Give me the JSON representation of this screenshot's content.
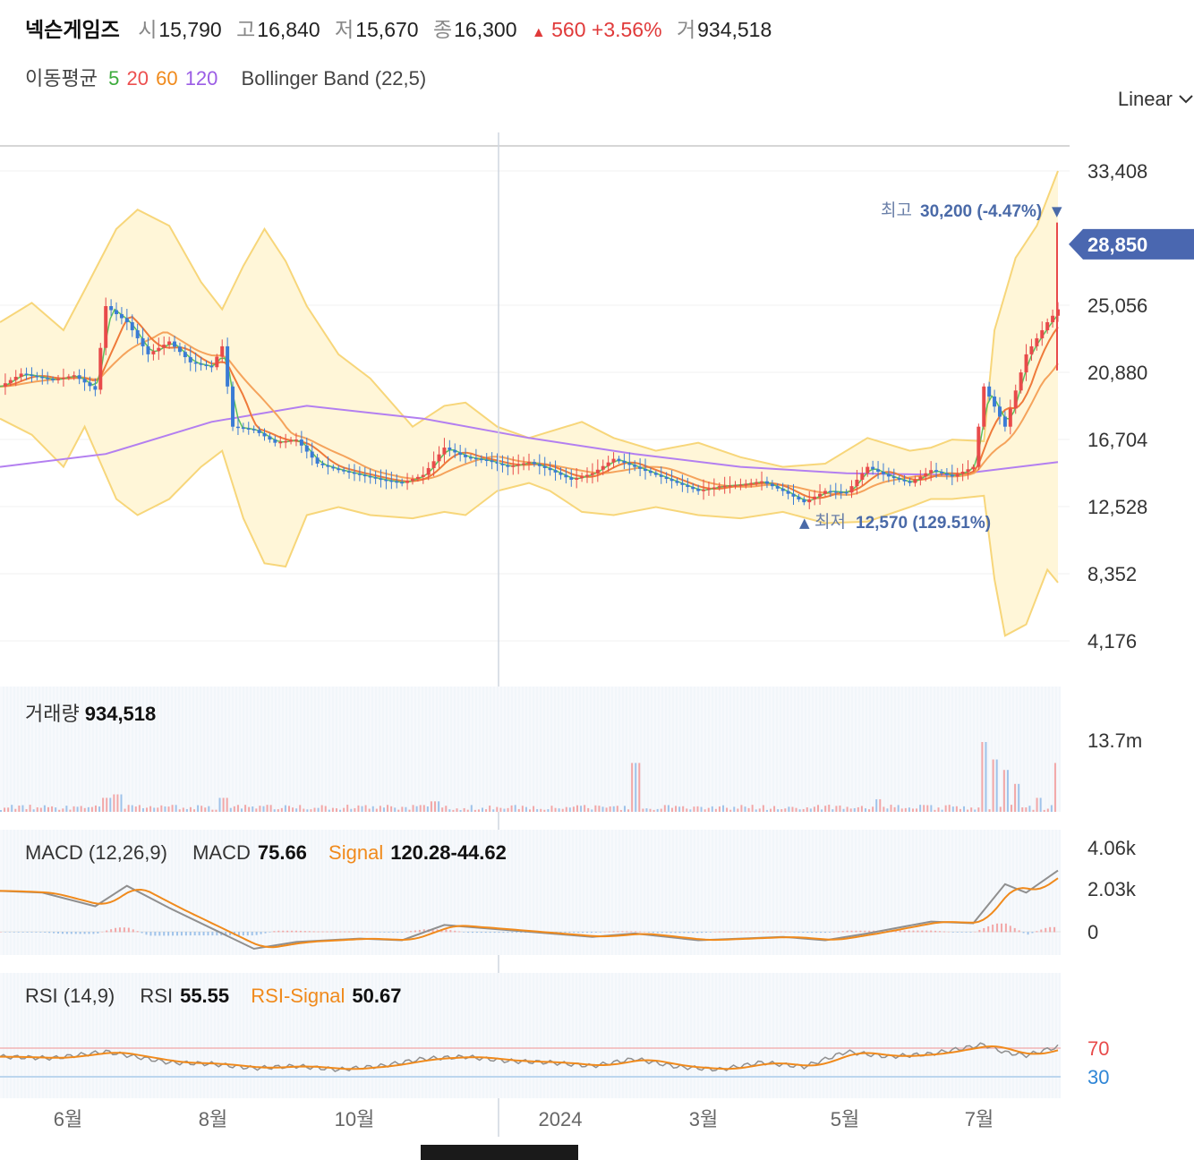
{
  "header": {
    "name": "넥슨게임즈",
    "open_label": "시",
    "open": "15,790",
    "high_label": "고",
    "high": "16,840",
    "low_label": "저",
    "low": "15,670",
    "close_label": "종",
    "close": "16,300",
    "change_arrow": "▲",
    "change": "560",
    "change_pct": "+3.56%",
    "volume_label": "거",
    "volume": "934,518"
  },
  "indicators": {
    "ma_label": "이동평균",
    "ma_periods": [
      "5",
      "20",
      "60",
      "120"
    ],
    "ma_colors": [
      "#3cab3c",
      "#ec4f4f",
      "#f08a1c",
      "#9b5de5"
    ],
    "bollinger": "Bollinger Band (22,5)"
  },
  "scale_mode": "Linear",
  "volume_panel": {
    "label": "거래량",
    "value": "934,518",
    "axis_tick": "13.7m"
  },
  "macd_panel": {
    "label": "MACD (12,26,9)",
    "macd_label": "MACD",
    "macd_value": "75.66",
    "signal_label": "Signal",
    "signal_value": "120.28",
    "hist_value": "-44.62",
    "axis_ticks": [
      "4.06k",
      "2.03k",
      "0"
    ]
  },
  "rsi_panel": {
    "label": "RSI (14,9)",
    "rsi_label": "RSI",
    "rsi_value": "55.55",
    "signal_label": "RSI-Signal",
    "signal_value": "50.67",
    "axis_ticks": [
      "70",
      "30"
    ]
  },
  "chart_data": {
    "type": "candlestick",
    "y_ticks": [
      "33,408",
      "25,056",
      "20,880",
      "16,704",
      "12,528",
      "8,352",
      "4,176"
    ],
    "y_tick_values": [
      33408,
      25056,
      20880,
      16704,
      12528,
      8352,
      4176
    ],
    "ylim": [
      4176,
      33408
    ],
    "current_price_label": "28,850",
    "current_price": 28850,
    "high_annotation": {
      "label": "최고",
      "value": "30,200",
      "pct": "(-4.47%)",
      "arrow": "▼"
    },
    "low_annotation": {
      "label": "최저",
      "value": "12,570",
      "pct": "(129.51%)",
      "arrow": "▲"
    },
    "x_ticks": [
      "6월",
      "8월",
      "10월",
      "2024",
      "3월",
      "5월",
      "7월"
    ],
    "close_path": [
      [
        0,
        20000
      ],
      [
        0.02,
        20800
      ],
      [
        0.05,
        20400
      ],
      [
        0.07,
        20700
      ],
      [
        0.09,
        19800
      ],
      [
        0.1,
        25000
      ],
      [
        0.12,
        24000
      ],
      [
        0.14,
        22000
      ],
      [
        0.16,
        22800
      ],
      [
        0.18,
        21500
      ],
      [
        0.2,
        21200
      ],
      [
        0.21,
        22500
      ],
      [
        0.22,
        17500
      ],
      [
        0.24,
        17300
      ],
      [
        0.26,
        16500
      ],
      [
        0.28,
        16700
      ],
      [
        0.3,
        15200
      ],
      [
        0.32,
        14800
      ],
      [
        0.34,
        14500
      ],
      [
        0.36,
        14200
      ],
      [
        0.38,
        14000
      ],
      [
        0.4,
        14500
      ],
      [
        0.42,
        16200
      ],
      [
        0.44,
        15600
      ],
      [
        0.46,
        15400
      ],
      [
        0.48,
        15000
      ],
      [
        0.5,
        15300
      ],
      [
        0.52,
        14800
      ],
      [
        0.54,
        14200
      ],
      [
        0.56,
        14600
      ],
      [
        0.58,
        15500
      ],
      [
        0.6,
        15000
      ],
      [
        0.62,
        14500
      ],
      [
        0.64,
        14000
      ],
      [
        0.66,
        13500
      ],
      [
        0.68,
        13800
      ],
      [
        0.7,
        13900
      ],
      [
        0.72,
        14100
      ],
      [
        0.74,
        13500
      ],
      [
        0.76,
        12800
      ],
      [
        0.78,
        13500
      ],
      [
        0.8,
        13400
      ],
      [
        0.82,
        15000
      ],
      [
        0.84,
        14400
      ],
      [
        0.86,
        14000
      ],
      [
        0.88,
        14800
      ],
      [
        0.9,
        14400
      ],
      [
        0.92,
        15000
      ],
      [
        0.93,
        20000
      ],
      [
        0.95,
        17500
      ],
      [
        0.97,
        22000
      ],
      [
        0.99,
        24000
      ],
      [
        1.0,
        24800
      ]
    ],
    "ma120_path": [
      [
        0,
        15000
      ],
      [
        0.1,
        15800
      ],
      [
        0.2,
        17800
      ],
      [
        0.29,
        18800
      ],
      [
        0.4,
        18000
      ],
      [
        0.5,
        16800
      ],
      [
        0.6,
        15800
      ],
      [
        0.7,
        15000
      ],
      [
        0.8,
        14600
      ],
      [
        0.9,
        14500
      ],
      [
        1.0,
        15300
      ]
    ],
    "bb_upper_path": [
      [
        0,
        24000
      ],
      [
        0.03,
        25200
      ],
      [
        0.06,
        23500
      ],
      [
        0.08,
        26000
      ],
      [
        0.11,
        29800
      ],
      [
        0.13,
        31000
      ],
      [
        0.16,
        30000
      ],
      [
        0.19,
        26500
      ],
      [
        0.21,
        24800
      ],
      [
        0.23,
        27500
      ],
      [
        0.25,
        29800
      ],
      [
        0.27,
        27800
      ],
      [
        0.29,
        25000
      ],
      [
        0.32,
        22000
      ],
      [
        0.35,
        20500
      ],
      [
        0.39,
        17500
      ],
      [
        0.42,
        18800
      ],
      [
        0.44,
        19000
      ],
      [
        0.47,
        17500
      ],
      [
        0.5,
        16800
      ],
      [
        0.52,
        17200
      ],
      [
        0.55,
        17800
      ],
      [
        0.58,
        16800
      ],
      [
        0.62,
        16000
      ],
      [
        0.66,
        16500
      ],
      [
        0.7,
        15600
      ],
      [
        0.74,
        15000
      ],
      [
        0.78,
        15200
      ],
      [
        0.82,
        16800
      ],
      [
        0.86,
        16000
      ],
      [
        0.88,
        16200
      ],
      [
        0.9,
        16700
      ],
      [
        0.93,
        16600
      ],
      [
        0.94,
        23500
      ],
      [
        0.96,
        28000
      ],
      [
        0.98,
        30000
      ],
      [
        1.0,
        33408
      ]
    ],
    "bb_lower_path": [
      [
        0,
        18000
      ],
      [
        0.03,
        17000
      ],
      [
        0.06,
        15000
      ],
      [
        0.08,
        17500
      ],
      [
        0.11,
        13000
      ],
      [
        0.13,
        12000
      ],
      [
        0.16,
        13000
      ],
      [
        0.19,
        15000
      ],
      [
        0.21,
        16000
      ],
      [
        0.23,
        11800
      ],
      [
        0.25,
        9000
      ],
      [
        0.27,
        8800
      ],
      [
        0.29,
        12000
      ],
      [
        0.32,
        12500
      ],
      [
        0.35,
        12000
      ],
      [
        0.39,
        11800
      ],
      [
        0.42,
        12200
      ],
      [
        0.44,
        12000
      ],
      [
        0.47,
        13500
      ],
      [
        0.5,
        14000
      ],
      [
        0.52,
        13500
      ],
      [
        0.55,
        12200
      ],
      [
        0.58,
        12000
      ],
      [
        0.62,
        12500
      ],
      [
        0.66,
        12000
      ],
      [
        0.7,
        11800
      ],
      [
        0.74,
        12200
      ],
      [
        0.78,
        11500
      ],
      [
        0.82,
        11600
      ],
      [
        0.86,
        12500
      ],
      [
        0.88,
        13000
      ],
      [
        0.9,
        13000
      ],
      [
        0.93,
        13200
      ],
      [
        0.94,
        8000
      ],
      [
        0.95,
        4500
      ],
      [
        0.97,
        5200
      ],
      [
        0.99,
        8600
      ],
      [
        1.0,
        7800
      ]
    ],
    "volume_spikes": [
      [
        0.1,
        0.2
      ],
      [
        0.11,
        0.25
      ],
      [
        0.21,
        0.2
      ],
      [
        0.41,
        0.15
      ],
      [
        0.6,
        0.7
      ],
      [
        0.83,
        0.18
      ],
      [
        0.93,
        1.0
      ],
      [
        0.94,
        0.75
      ],
      [
        0.95,
        0.6
      ],
      [
        0.96,
        0.4
      ],
      [
        0.98,
        0.2
      ],
      [
        1.0,
        0.7
      ]
    ],
    "macd_path": [
      [
        0,
        2.4
      ],
      [
        0.04,
        2.3
      ],
      [
        0.09,
        1.5
      ],
      [
        0.12,
        2.7
      ],
      [
        0.16,
        1.4
      ],
      [
        0.2,
        0.2
      ],
      [
        0.24,
        -1.0
      ],
      [
        0.28,
        -0.6
      ],
      [
        0.34,
        -0.4
      ],
      [
        0.38,
        -0.5
      ],
      [
        0.42,
        0.4
      ],
      [
        0.46,
        0.2
      ],
      [
        0.5,
        0
      ],
      [
        0.56,
        -0.3
      ],
      [
        0.6,
        -0.1
      ],
      [
        0.66,
        -0.5
      ],
      [
        0.7,
        -0.4
      ],
      [
        0.74,
        -0.3
      ],
      [
        0.78,
        -0.5
      ],
      [
        0.82,
        -0.1
      ],
      [
        0.88,
        0.6
      ],
      [
        0.92,
        0.5
      ],
      [
        0.95,
        2.8
      ],
      [
        0.97,
        2.3
      ],
      [
        1.0,
        3.6
      ]
    ],
    "rsi_path": [
      [
        0,
        58
      ],
      [
        0.05,
        56
      ],
      [
        0.1,
        65
      ],
      [
        0.12,
        60
      ],
      [
        0.16,
        50
      ],
      [
        0.2,
        48
      ],
      [
        0.24,
        42
      ],
      [
        0.28,
        45
      ],
      [
        0.32,
        40
      ],
      [
        0.36,
        45
      ],
      [
        0.4,
        55
      ],
      [
        0.44,
        58
      ],
      [
        0.48,
        52
      ],
      [
        0.52,
        50
      ],
      [
        0.56,
        45
      ],
      [
        0.6,
        55
      ],
      [
        0.64,
        44
      ],
      [
        0.68,
        40
      ],
      [
        0.72,
        50
      ],
      [
        0.76,
        44
      ],
      [
        0.8,
        65
      ],
      [
        0.84,
        58
      ],
      [
        0.88,
        62
      ],
      [
        0.93,
        75
      ],
      [
        0.95,
        64
      ],
      [
        0.97,
        60
      ],
      [
        1.0,
        72
      ]
    ]
  }
}
